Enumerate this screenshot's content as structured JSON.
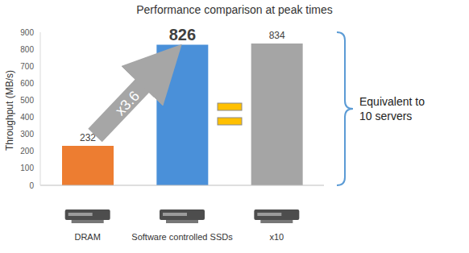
{
  "chart_data": {
    "type": "bar",
    "title": "Performance comparison at peak times",
    "y_label": "Throughput (MB/s)",
    "categories": [
      "DRAM",
      "Software controlled SSDs",
      "x10"
    ],
    "values": [
      232,
      826,
      834
    ],
    "colors": [
      "#ed7d31",
      "#4a90d9",
      "#a5a5a5"
    ],
    "ylim": [
      0,
      900
    ],
    "yticks": [
      0,
      100,
      200,
      300,
      400,
      500,
      600,
      700,
      800,
      900
    ],
    "grid": false,
    "data_labels": true,
    "annotations": [
      "x3.6",
      "Equivalent to 10 servers"
    ]
  }
}
